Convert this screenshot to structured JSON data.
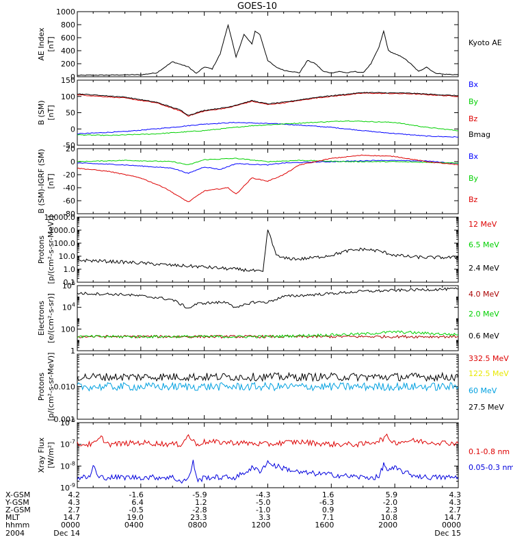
{
  "title": "GOES-10",
  "chart_data": [
    {
      "type": "line",
      "ylabel": [
        "AE Index",
        "[nT]"
      ],
      "ylim": [
        0,
        1000
      ],
      "yticks": [
        0,
        200,
        400,
        600,
        800,
        1000
      ],
      "series": [
        {
          "name": "Kyoto AE",
          "color": "#000000",
          "x": [
            0,
            1,
            2,
            3,
            4,
            5,
            6,
            7,
            7.5,
            8,
            8.5,
            9,
            9.5,
            10,
            10.5,
            11,
            11.2,
            11.5,
            12,
            12.5,
            13,
            13.5,
            14,
            14.5,
            15,
            15.5,
            16,
            16.5,
            17,
            17.5,
            18,
            18.5,
            19,
            19.3,
            19.6,
            20,
            20.5,
            21,
            21.5,
            22,
            22.5,
            23,
            24
          ],
          "y": [
            20,
            25,
            25,
            30,
            30,
            60,
            230,
            150,
            50,
            150,
            120,
            350,
            800,
            300,
            650,
            500,
            700,
            650,
            250,
            150,
            100,
            80,
            60,
            250,
            200,
            80,
            60,
            80,
            60,
            80,
            60,
            200,
            450,
            700,
            400,
            350,
            300,
            200,
            80,
            150,
            60,
            40,
            30
          ]
        }
      ]
    },
    {
      "type": "line",
      "ylabel": [
        "B (SM)",
        "[nT]"
      ],
      "ylim": [
        -50,
        150
      ],
      "yticks": [
        -50,
        0,
        50,
        100,
        150
      ],
      "series": [
        {
          "name": "Bx",
          "color": "#0000ff",
          "x": [
            0,
            3,
            6,
            8,
            10,
            13,
            16,
            19,
            22,
            24
          ],
          "y": [
            -15,
            -8,
            5,
            15,
            20,
            15,
            5,
            -10,
            -22,
            -25
          ]
        },
        {
          "name": "By",
          "color": "#00d000",
          "x": [
            0,
            2,
            5,
            8,
            11,
            14,
            17,
            20,
            22,
            24
          ],
          "y": [
            -18,
            -20,
            -15,
            -5,
            10,
            18,
            25,
            20,
            5,
            -5
          ]
        },
        {
          "name": "Bz",
          "color": "#dd0000",
          "x": [
            0,
            3,
            5,
            6.5,
            7,
            8,
            9.5,
            11,
            12,
            13,
            15,
            18,
            21,
            24
          ],
          "y": [
            105,
            95,
            80,
            55,
            40,
            55,
            65,
            85,
            75,
            80,
            95,
            110,
            108,
            100
          ]
        },
        {
          "name": "Bmag",
          "color": "#000000",
          "x": [
            0,
            3,
            5,
            6.5,
            7,
            8,
            9.5,
            11,
            12,
            13,
            15,
            18,
            21,
            24
          ],
          "y": [
            108,
            98,
            82,
            58,
            42,
            57,
            67,
            87,
            77,
            82,
            97,
            112,
            110,
            102
          ]
        }
      ]
    },
    {
      "type": "line",
      "ylabel": [
        "B (SM)-IGRF (SM)",
        "[nT]"
      ],
      "ylim": [
        -80,
        20
      ],
      "yticks": [
        -80,
        -60,
        -40,
        -20,
        0,
        20
      ],
      "series": [
        {
          "name": "Bx",
          "color": "#0000ff",
          "x": [
            0,
            3,
            6,
            7,
            8,
            9,
            10,
            12,
            13,
            16,
            19,
            22,
            24
          ],
          "y": [
            -2,
            -5,
            -10,
            -18,
            -8,
            -12,
            -3,
            -5,
            -2,
            0,
            2,
            1,
            -3
          ]
        },
        {
          "name": "By",
          "color": "#00d000",
          "x": [
            0,
            3,
            6,
            7,
            8,
            10,
            12,
            14,
            17,
            20,
            24
          ],
          "y": [
            0,
            2,
            0,
            -5,
            3,
            5,
            0,
            2,
            0,
            0,
            -2
          ]
        },
        {
          "name": "Bz",
          "color": "#dd0000",
          "x": [
            0,
            2,
            4,
            5.5,
            6.5,
            7,
            8,
            9.5,
            10,
            11,
            12,
            13,
            14,
            16,
            18,
            20,
            22,
            24
          ],
          "y": [
            -10,
            -15,
            -25,
            -40,
            -55,
            -62,
            -45,
            -40,
            -50,
            -25,
            -30,
            -20,
            -5,
            5,
            10,
            8,
            0,
            -5
          ]
        }
      ]
    },
    {
      "type": "line",
      "log": true,
      "ylabel": [
        "Protons",
        "[p/(cm²-s-sr-MeV)]"
      ],
      "ylim": [
        0.1,
        10000
      ],
      "yticks": [
        "0.1",
        "1.0",
        "10.0",
        "100.0",
        "1000.0",
        "10000.0"
      ],
      "series": [
        {
          "name": "12 MeV",
          "color": "#dd0000",
          "x": [],
          "y": []
        },
        {
          "name": "6.5 MeV",
          "color": "#00d000",
          "x": [],
          "y": []
        },
        {
          "name": "2.4 MeV",
          "color": "#000000",
          "x": [
            0,
            2,
            4,
            6,
            8,
            9,
            10,
            11,
            11.7,
            12,
            12.3,
            12.6,
            13,
            14,
            15,
            16,
            17,
            18,
            19,
            20,
            21,
            22,
            24
          ],
          "y": [
            5,
            4,
            3,
            2,
            1.5,
            1.2,
            1,
            0.8,
            0.6,
            1200,
            80,
            10,
            7,
            6,
            8,
            12,
            25,
            35,
            25,
            12,
            9,
            8,
            8
          ]
        }
      ]
    },
    {
      "type": "line",
      "log": true,
      "ylabel": [
        "Electrons",
        "[e/(cm²-s-sr)]"
      ],
      "ylim": [
        1,
        1000000
      ],
      "yticks": [
        1,
        100,
        10000,
        1000000
      ],
      "series": [
        {
          "name": "4.0 MeV",
          "color": "#aa0000",
          "x": [
            0,
            24
          ],
          "y": [
            20,
            20
          ]
        },
        {
          "name": "2.0 MeV",
          "color": "#00d000",
          "x": [
            0,
            12,
            18,
            20,
            24
          ],
          "y": [
            20,
            20,
            35,
            55,
            30
          ]
        },
        {
          "name": "0.6 MeV",
          "color": "#000000",
          "x": [
            0,
            3,
            5,
            6,
            7,
            7.5,
            8,
            9.5,
            10,
            11,
            12,
            13,
            15,
            18,
            21,
            24
          ],
          "y": [
            200000,
            150000,
            80000,
            50000,
            8000,
            20000,
            25000,
            30000,
            8000,
            30000,
            30000,
            100000,
            150000,
            300000,
            400000,
            500000
          ]
        }
      ]
    },
    {
      "type": "line",
      "log": true,
      "ylabel": [
        "Protons",
        "[p/(cm²-s-sr-MeV)]"
      ],
      "ylim": [
        0.001,
        0.1
      ],
      "yticks": [
        "0.001",
        "0.010"
      ],
      "series": [
        {
          "name": "332.5 MeV",
          "color": "#dd0000",
          "x": [],
          "y": []
        },
        {
          "name": "122.5 MeV",
          "color": "#e8e800",
          "x": [],
          "y": []
        },
        {
          "name": "60 MeV",
          "color": "#00a0e0",
          "x": [
            0,
            24
          ],
          "y": [
            0.01,
            0.01
          ]
        },
        {
          "name": "27.5 MeV",
          "color": "#000000",
          "x": [
            0,
            24
          ],
          "y": [
            0.02,
            0.02
          ]
        }
      ]
    },
    {
      "type": "line",
      "log": true,
      "ylabel": [
        "Xray Flux",
        "[W/m²]"
      ],
      "ylim": [
        1e-09,
        1e-06
      ],
      "yticks": [
        1e-09,
        1e-08,
        1e-07,
        1e-06
      ],
      "series": [
        {
          "name": "0.1-0.8 nm",
          "color": "#dd0000",
          "x": [
            0,
            1,
            1.5,
            2,
            4,
            6,
            6.5,
            7,
            7.5,
            8,
            10,
            11,
            12,
            13,
            14,
            16,
            18,
            19,
            19.5,
            20,
            21,
            22,
            24
          ],
          "y": [
            1e-07,
            1e-07,
            2e-07,
            1e-07,
            1.2e-07,
            1e-07,
            1e-07,
            2.5e-07,
            1e-07,
            1.3e-07,
            1.2e-07,
            1.1e-07,
            1e-07,
            1.2e-07,
            1.3e-07,
            1e-07,
            1e-07,
            1.5e-07,
            2.2e-07,
            1.2e-07,
            1.5e-07,
            1.3e-07,
            1.1e-07
          ]
        },
        {
          "name": "0.05-0.3 nm",
          "color": "#0000dd",
          "x": [
            0,
            0.8,
            1,
            1.3,
            1.6,
            2,
            4,
            6,
            6.5,
            7,
            7.3,
            7.6,
            8,
            9,
            10,
            11,
            11.5,
            12,
            12.5,
            13,
            14,
            16,
            18,
            19,
            19.3,
            19.6,
            20,
            21,
            22,
            24
          ],
          "y": [
            3e-09,
            3e-09,
            1.2e-08,
            3e-09,
            3e-09,
            3e-09,
            3e-09,
            3e-09,
            2e-09,
            2.5e-09,
            1.5e-08,
            2e-09,
            3e-09,
            3e-09,
            3e-09,
            8e-09,
            6e-09,
            1.5e-08,
            1e-08,
            8e-09,
            5e-09,
            4e-09,
            3e-09,
            3e-09,
            1.2e-08,
            6e-09,
            8e-09,
            4e-09,
            3e-09,
            3e-09
          ]
        }
      ]
    }
  ],
  "footer": {
    "row_labels": [
      "X-GSM",
      "Y-GSM",
      "Z-GSM",
      "MLT",
      "hhmm",
      "2004"
    ],
    "columns": [
      [
        "4.2",
        "4.3",
        "2.7",
        "14.7",
        "0000",
        "Dec 14"
      ],
      [
        "-1.6",
        "6.4",
        "-0.5",
        "19.0",
        "0400",
        ""
      ],
      [
        "-5.9",
        "1.2",
        "-2.8",
        "23.3",
        "0800",
        ""
      ],
      [
        "-4.3",
        "-5.0",
        "-1.0",
        "3.3",
        "1200",
        ""
      ],
      [
        "1.6",
        "-6.3",
        "0.9",
        "7.1",
        "1600",
        ""
      ],
      [
        "5.9",
        "-2.0",
        "2.3",
        "10.8",
        "2000",
        ""
      ],
      [
        "4.3",
        "4.3",
        "2.7",
        "14.7",
        "0000",
        "Dec 15"
      ]
    ]
  }
}
